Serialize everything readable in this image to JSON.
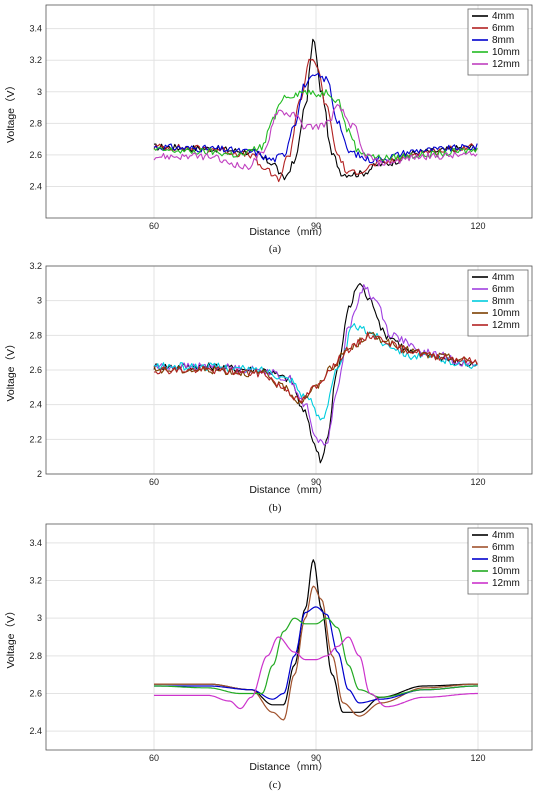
{
  "chart_data": [
    {
      "type": "line",
      "caption": "(a)",
      "xlabel": "Distance（mm）",
      "ylabel": "Voltage（V）",
      "xlim": [
        40,
        130
      ],
      "ylim": [
        2.2,
        3.55
      ],
      "xticks": [
        60,
        90,
        120
      ],
      "yticks": [
        "2.4",
        "2.6",
        "2.8",
        "3",
        "3.2",
        "3.4"
      ],
      "yticks_num": [
        2.4,
        2.6,
        2.8,
        3.0,
        3.2,
        3.4
      ],
      "grid": true,
      "legend_position": "top-right",
      "noisy": true,
      "series": [
        {
          "name": "4mm",
          "color": "#000000",
          "x": [
            60,
            70,
            78,
            82,
            84,
            86,
            88,
            89.5,
            91,
            93,
            95,
            98,
            102,
            110,
            120
          ],
          "y": [
            2.65,
            2.64,
            2.62,
            2.55,
            2.45,
            2.55,
            2.9,
            3.33,
            3.0,
            2.6,
            2.48,
            2.48,
            2.54,
            2.62,
            2.65
          ]
        },
        {
          "name": "6mm",
          "color": "#b22222",
          "x": [
            60,
            70,
            78,
            80,
            83,
            85,
            87,
            89,
            90,
            92,
            94,
            96,
            98,
            102,
            110,
            120
          ],
          "y": [
            2.65,
            2.64,
            2.6,
            2.52,
            2.45,
            2.6,
            2.95,
            3.2,
            3.18,
            2.9,
            2.6,
            2.48,
            2.5,
            2.55,
            2.62,
            2.65
          ]
        },
        {
          "name": "8mm",
          "color": "#0000cd",
          "x": [
            60,
            70,
            78,
            82,
            84,
            86,
            88,
            90,
            92,
            94,
            96,
            100,
            110,
            120
          ],
          "y": [
            2.65,
            2.64,
            2.62,
            2.57,
            2.6,
            2.8,
            3.05,
            3.1,
            3.08,
            2.82,
            2.62,
            2.57,
            2.63,
            2.65
          ]
        },
        {
          "name": "10mm",
          "color": "#22bb22",
          "x": [
            60,
            70,
            76,
            80,
            82,
            84,
            88,
            90,
            92,
            94,
            96,
            98,
            102,
            110,
            120
          ],
          "y": [
            2.63,
            2.62,
            2.6,
            2.65,
            2.82,
            2.97,
            3.0,
            2.98,
            3.0,
            2.95,
            2.75,
            2.62,
            2.58,
            2.6,
            2.63
          ]
        },
        {
          "name": "12mm",
          "color": "#c040c0",
          "x": [
            60,
            70,
            74,
            77,
            80,
            83,
            86,
            88,
            90,
            92,
            94,
            97,
            99,
            102,
            110,
            120
          ],
          "y": [
            2.59,
            2.59,
            2.55,
            2.52,
            2.6,
            2.88,
            2.85,
            2.78,
            2.78,
            2.8,
            2.9,
            2.78,
            2.6,
            2.55,
            2.59,
            2.6
          ]
        }
      ]
    },
    {
      "type": "line",
      "caption": "(b)",
      "xlabel": "Distance（mm）",
      "ylabel": "Voltage（V）",
      "xlim": [
        40,
        130
      ],
      "ylim": [
        2.0,
        3.2
      ],
      "xticks": [
        60,
        90,
        120
      ],
      "yticks": [
        "2",
        "2.2",
        "2.4",
        "2.6",
        "2.8",
        "3",
        "3.2"
      ],
      "yticks_num": [
        2.0,
        2.2,
        2.4,
        2.6,
        2.8,
        3.0,
        3.2
      ],
      "grid": true,
      "legend_position": "top-right",
      "noisy": true,
      "series": [
        {
          "name": "4mm",
          "color": "#000000",
          "x": [
            60,
            70,
            80,
            85,
            88,
            90,
            91,
            92,
            94,
            96,
            98,
            100,
            103,
            108,
            120
          ],
          "y": [
            2.62,
            2.62,
            2.6,
            2.55,
            2.35,
            2.15,
            2.08,
            2.2,
            2.6,
            2.95,
            3.1,
            3.0,
            2.8,
            2.7,
            2.63
          ]
        },
        {
          "name": "6mm",
          "color": "#a040e0",
          "x": [
            60,
            70,
            80,
            85,
            88,
            90,
            92,
            94,
            96,
            99,
            101,
            104,
            110,
            120
          ],
          "y": [
            2.62,
            2.62,
            2.6,
            2.55,
            2.4,
            2.2,
            2.18,
            2.5,
            2.85,
            3.08,
            3.0,
            2.8,
            2.7,
            2.63
          ]
        },
        {
          "name": "8mm",
          "color": "#00ccdd",
          "x": [
            60,
            70,
            80,
            85,
            88,
            91,
            94,
            97,
            100,
            103,
            108,
            120
          ],
          "y": [
            2.62,
            2.62,
            2.6,
            2.55,
            2.45,
            2.32,
            2.6,
            2.85,
            2.82,
            2.75,
            2.68,
            2.63
          ]
        },
        {
          "name": "10mm",
          "color": "#7b3f00",
          "x": [
            60,
            70,
            80,
            84,
            87,
            90,
            93,
            96,
            100,
            102,
            106,
            112,
            120
          ],
          "y": [
            2.6,
            2.6,
            2.58,
            2.5,
            2.42,
            2.5,
            2.62,
            2.72,
            2.8,
            2.78,
            2.72,
            2.68,
            2.65
          ]
        },
        {
          "name": "12mm",
          "color": "#b22222",
          "x": [
            60,
            70,
            80,
            84,
            87,
            90,
            93,
            96,
            100,
            102,
            106,
            112,
            120
          ],
          "y": [
            2.6,
            2.6,
            2.58,
            2.5,
            2.42,
            2.5,
            2.62,
            2.72,
            2.8,
            2.78,
            2.72,
            2.68,
            2.65
          ]
        }
      ]
    },
    {
      "type": "line",
      "caption": "(c)",
      "xlabel": "Distance（mm）",
      "ylabel": "Voltage（V）",
      "xlim": [
        40,
        130
      ],
      "ylim": [
        2.3,
        3.5
      ],
      "xticks": [
        60,
        90,
        120
      ],
      "yticks": [
        "2.4",
        "2.6",
        "2.8",
        "3",
        "3.2",
        "3.4"
      ],
      "yticks_num": [
        2.4,
        2.6,
        2.8,
        3.0,
        3.2,
        3.4
      ],
      "grid": true,
      "legend_position": "top-right",
      "noisy": false,
      "series": [
        {
          "name": "4mm",
          "color": "#000000",
          "x": [
            60,
            70,
            78,
            82,
            84,
            86,
            88,
            89.5,
            91,
            93,
            95,
            98,
            102,
            110,
            120
          ],
          "y": [
            2.65,
            2.65,
            2.62,
            2.54,
            2.54,
            2.75,
            3.05,
            3.31,
            3.05,
            2.7,
            2.5,
            2.5,
            2.58,
            2.64,
            2.65
          ]
        },
        {
          "name": "6mm",
          "color": "#a0522d",
          "x": [
            60,
            70,
            78,
            82,
            84,
            86,
            88,
            89.5,
            91,
            93,
            95,
            98,
            102,
            110,
            120
          ],
          "y": [
            2.65,
            2.65,
            2.62,
            2.5,
            2.46,
            2.7,
            3.0,
            3.17,
            3.1,
            2.8,
            2.55,
            2.48,
            2.55,
            2.63,
            2.65
          ]
        },
        {
          "name": "8mm",
          "color": "#0000cd",
          "x": [
            60,
            70,
            78,
            82,
            84,
            86,
            88,
            90,
            92,
            94,
            96,
            98,
            102,
            110,
            120
          ],
          "y": [
            2.64,
            2.64,
            2.62,
            2.57,
            2.6,
            2.8,
            3.03,
            3.06,
            3.02,
            2.82,
            2.62,
            2.55,
            2.57,
            2.62,
            2.64
          ]
        },
        {
          "name": "10mm",
          "color": "#22aa22",
          "x": [
            60,
            70,
            76,
            80,
            82,
            84,
            86,
            88,
            90,
            92,
            94,
            96,
            98,
            102,
            110,
            120
          ],
          "y": [
            2.64,
            2.63,
            2.6,
            2.6,
            2.75,
            2.93,
            3.0,
            2.97,
            2.97,
            3.0,
            2.95,
            2.75,
            2.62,
            2.58,
            2.62,
            2.64
          ]
        },
        {
          "name": "12mm",
          "color": "#cc33cc",
          "x": [
            60,
            70,
            74,
            76,
            78,
            81,
            83,
            86,
            88,
            90,
            92,
            94,
            96,
            98,
            100,
            103,
            110,
            120
          ],
          "y": [
            2.59,
            2.59,
            2.56,
            2.52,
            2.58,
            2.8,
            2.9,
            2.82,
            2.78,
            2.78,
            2.8,
            2.85,
            2.9,
            2.8,
            2.6,
            2.53,
            2.58,
            2.6
          ]
        }
      ]
    }
  ]
}
